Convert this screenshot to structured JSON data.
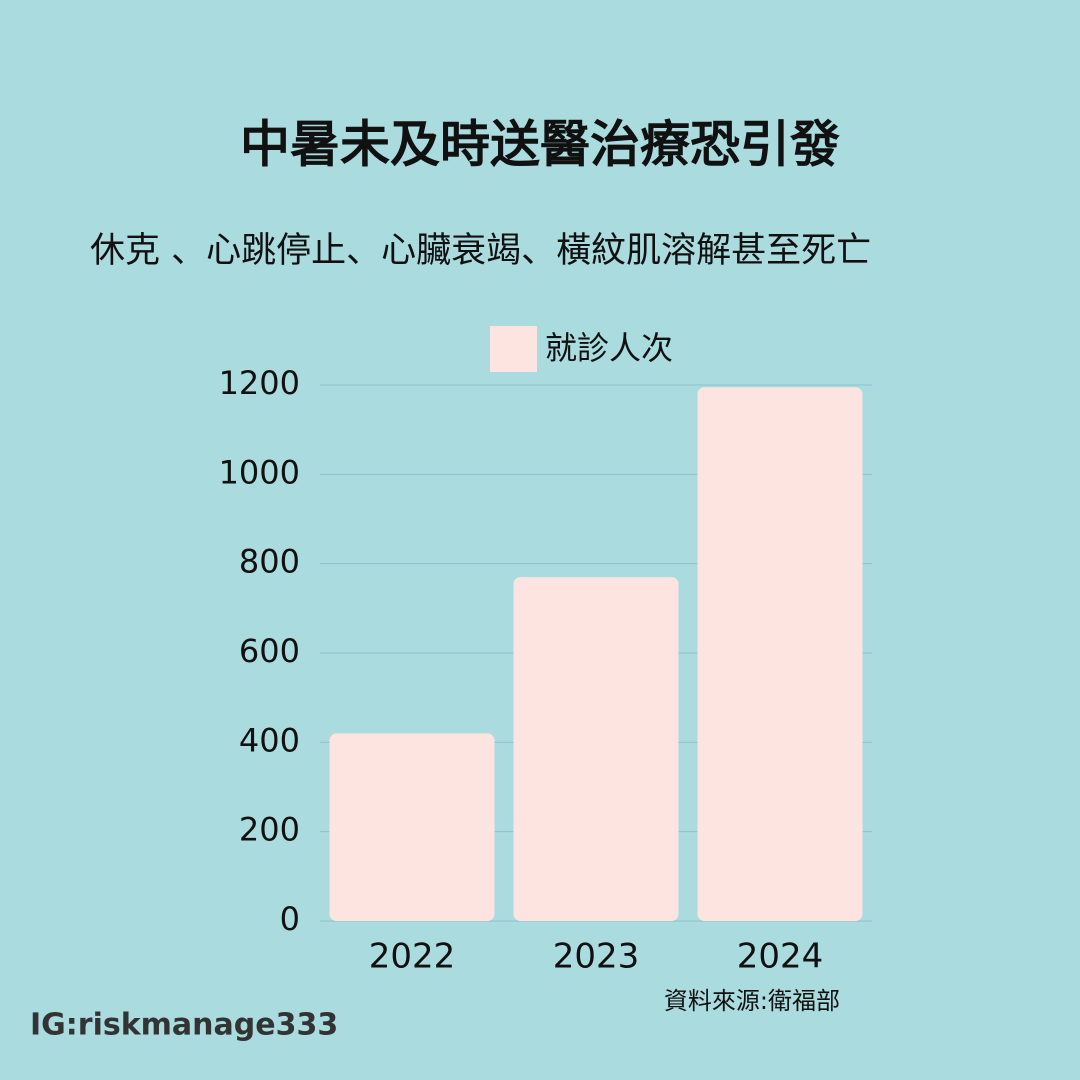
{
  "chart_data": {
    "type": "bar",
    "title": "中暑未及時送醫治療恐引發",
    "subtitle": "休克 、心跳停止、心臟衰竭、橫紋肌溶解甚至死亡",
    "categories": [
      "2022",
      "2023",
      "2024"
    ],
    "series": [
      {
        "name": "就診人次",
        "color": "#fde4e1",
        "values": [
          420,
          770,
          1195
        ]
      }
    ],
    "ylim": [
      0,
      1200
    ],
    "yticks": [
      0,
      200,
      400,
      600,
      800,
      1000,
      1200
    ],
    "grid": true,
    "source": "資料來源:衛福部",
    "credit": "IG:riskmanage333"
  }
}
